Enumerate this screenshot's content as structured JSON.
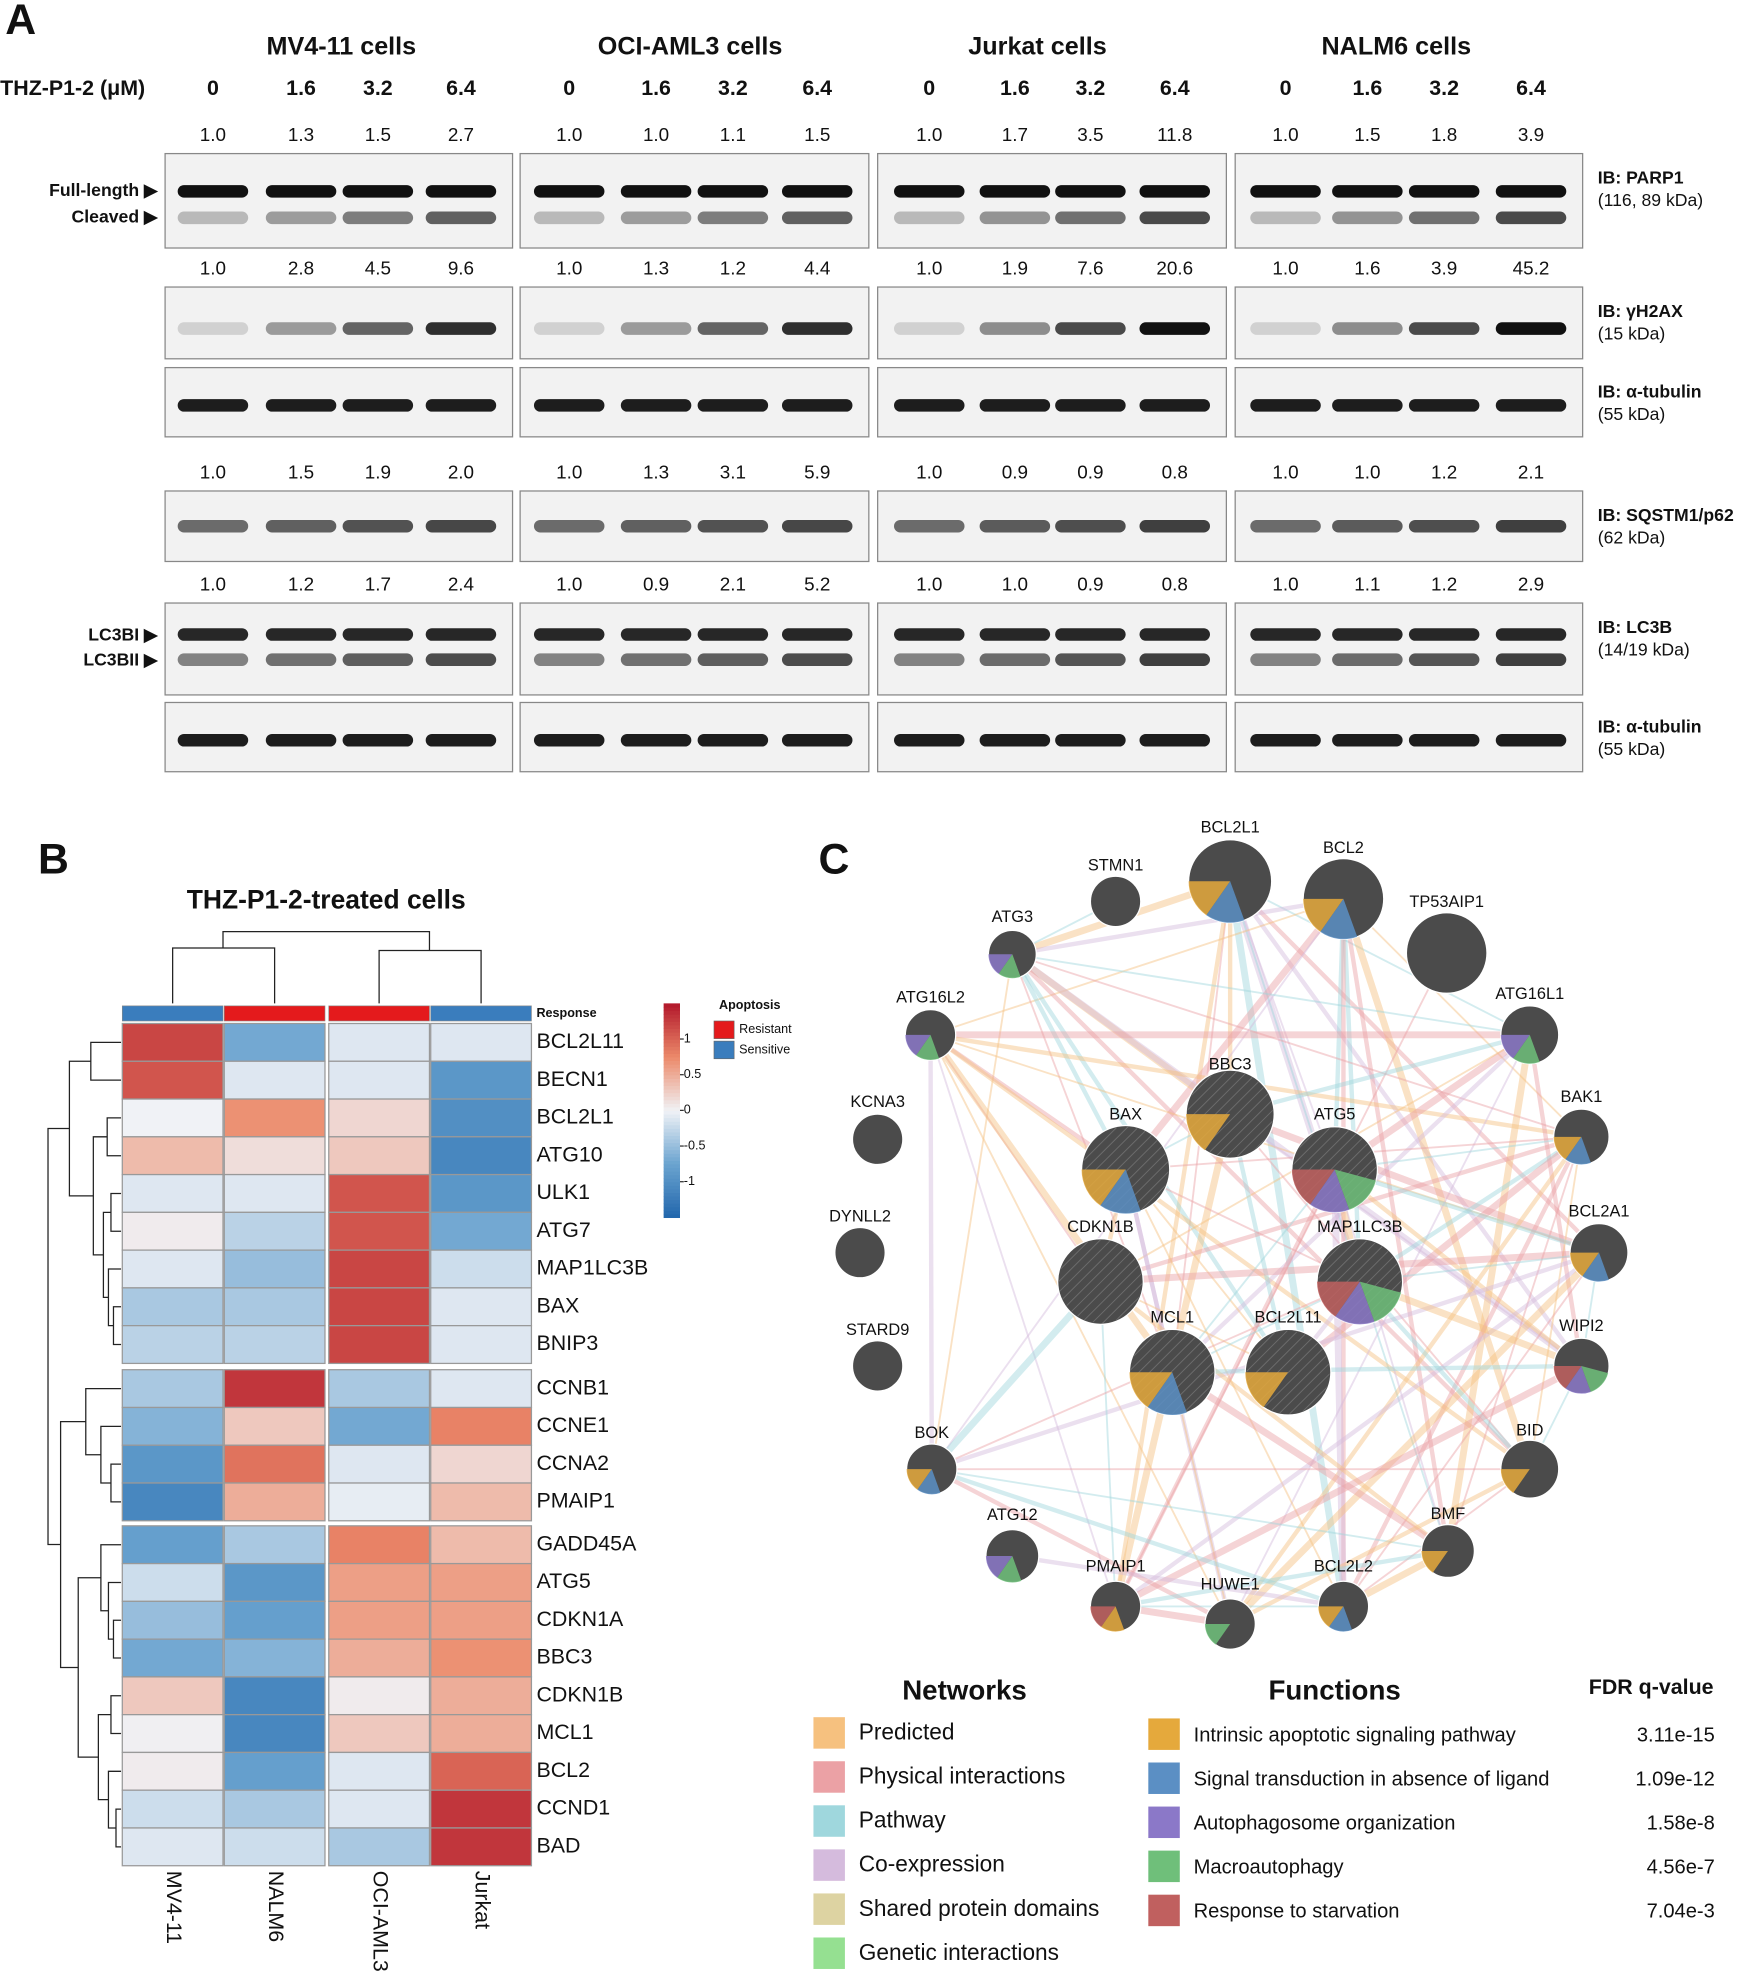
{
  "panel_a": {
    "label": "A",
    "treatment_label": "THZ-P1-2 (μM)",
    "cell_lines": [
      "MV4-11 cells",
      "OCI-AML3 cells",
      "Jurkat cells",
      "NALM6 cells"
    ],
    "doses": [
      "0",
      "1.6",
      "3.2",
      "6.4"
    ],
    "blots": [
      {
        "quantification": [
          [
            "1.0",
            "1.3",
            "1.5",
            "2.7"
          ],
          [
            "1.0",
            "1.0",
            "1.1",
            "1.5"
          ],
          [
            "1.0",
            "1.7",
            "3.5",
            "11.8"
          ],
          [
            "1.0",
            "1.5",
            "1.8",
            "3.9"
          ]
        ],
        "antibody": "IB: PARP1",
        "size": "(116, 89 kDa)",
        "markers": [
          "Full-length ▶",
          "Cleaved ▶"
        ]
      },
      {
        "quantification": [
          [
            "1.0",
            "2.8",
            "4.5",
            "9.6"
          ],
          [
            "1.0",
            "1.3",
            "1.2",
            "4.4"
          ],
          [
            "1.0",
            "1.9",
            "7.6",
            "20.6"
          ],
          [
            "1.0",
            "1.6",
            "3.9",
            "45.2"
          ]
        ],
        "antibody": "IB: γH2AX",
        "size": "(15 kDa)"
      },
      {
        "antibody": "IB: α-tubulin",
        "size": "(55 kDa)"
      },
      {
        "quantification": [
          [
            "1.0",
            "1.5",
            "1.9",
            "2.0"
          ],
          [
            "1.0",
            "1.3",
            "3.1",
            "5.9"
          ],
          [
            "1.0",
            "0.9",
            "0.9",
            "0.8"
          ],
          [
            "1.0",
            "1.0",
            "1.2",
            "2.1"
          ]
        ],
        "antibody": "IB: SQSTM1/p62",
        "size": "(62 kDa)"
      },
      {
        "quantification": [
          [
            "1.0",
            "1.2",
            "1.7",
            "2.4"
          ],
          [
            "1.0",
            "0.9",
            "2.1",
            "5.2"
          ],
          [
            "1.0",
            "1.0",
            "0.9",
            "0.8"
          ],
          [
            "1.0",
            "1.1",
            "1.2",
            "2.9"
          ]
        ],
        "antibody": "IB: LC3B",
        "size": "(14/19 kDa)",
        "markers": [
          "LC3BI ▶",
          "LC3BII ▶"
        ]
      },
      {
        "antibody": "IB: α-tubulin",
        "size": "(55 kDa)"
      }
    ]
  },
  "panel_b": {
    "label": "B",
    "title": "THZ-P1-2-treated cells",
    "response_label": "Response",
    "legend_title": "Apoptosis",
    "legend": [
      {
        "name": "Resistant",
        "color": "#e41a1c"
      },
      {
        "name": "Sensitive",
        "color": "#3a7dbd"
      }
    ],
    "columns": [
      {
        "name": "MV4-11",
        "response": 1
      },
      {
        "name": "NALM6",
        "response": 0
      },
      {
        "name": "OCI-AML3",
        "response": 0
      },
      {
        "name": "Jurkat",
        "response": 1
      }
    ],
    "genes": [
      "BCL2L11",
      "BECN1",
      "BCL2L1",
      "ATG10",
      "ULK1",
      "ATG7",
      "MAP1LC3B",
      "BAX",
      "BNIP3",
      "CCNB1",
      "CCNE1",
      "CCNA2",
      "PMAIP1",
      "GADD45A",
      "ATG5",
      "CDKN1A",
      "BBC3",
      "CDKN1B",
      "MCL1",
      "BCL2",
      "CCND1",
      "BAD"
    ],
    "values": [
      [
        1.2,
        -0.7,
        -0.1,
        -0.1
      ],
      [
        1.1,
        -0.1,
        -0.1,
        -0.9
      ],
      [
        0,
        0.7,
        0.2,
        -1.0
      ],
      [
        0.4,
        0.15,
        0.3,
        -1.1
      ],
      [
        -0.1,
        -0.1,
        1.1,
        -0.9
      ],
      [
        0.05,
        -0.3,
        1.1,
        -0.7
      ],
      [
        -0.1,
        -0.5,
        1.2,
        -0.2
      ],
      [
        -0.4,
        -0.4,
        1.2,
        -0.1
      ],
      [
        -0.3,
        -0.3,
        1.2,
        -0.1
      ],
      [
        -0.4,
        1.3,
        -0.4,
        -0.1
      ],
      [
        -0.6,
        0.3,
        -0.7,
        0.8
      ],
      [
        -0.9,
        0.9,
        -0.1,
        0.2
      ],
      [
        -1.1,
        0.5,
        -0.05,
        0.4
      ],
      [
        -0.8,
        -0.4,
        0.8,
        0.4
      ],
      [
        -0.2,
        -0.9,
        0.6,
        0.6
      ],
      [
        -0.5,
        -0.8,
        0.6,
        0.6
      ],
      [
        -0.7,
        -0.6,
        0.5,
        0.7
      ],
      [
        0.3,
        -1.1,
        0.05,
        0.5
      ],
      [
        0.02,
        -1.1,
        0.3,
        0.5
      ],
      [
        0.05,
        -0.8,
        -0.1,
        1.0
      ],
      [
        -0.2,
        -0.4,
        -0.1,
        1.3
      ],
      [
        -0.1,
        -0.2,
        -0.4,
        1.3
      ]
    ],
    "clim": [
      -1.5,
      1.5
    ],
    "cticks": [
      1,
      0.5,
      0,
      -0.5,
      -1
    ]
  },
  "panel_c": {
    "label": "C",
    "nodes": [
      {
        "label": "BCL2L1",
        "functions": [
          0,
          1
        ]
      },
      {
        "label": "BCL2",
        "functions": [
          0,
          1
        ]
      },
      {
        "label": "STMN1",
        "functions": []
      },
      {
        "label": "TP53AIP1",
        "functions": []
      },
      {
        "label": "ATG3",
        "functions": [
          2,
          3
        ]
      },
      {
        "label": "ATG16L2",
        "functions": [
          2,
          3
        ]
      },
      {
        "label": "ATG16L1",
        "functions": [
          2,
          3
        ]
      },
      {
        "label": "KCNA3",
        "functions": []
      },
      {
        "label": "BBC3",
        "functions": [
          0
        ]
      },
      {
        "label": "BAK1",
        "functions": [
          0,
          1
        ]
      },
      {
        "label": "BAX",
        "functions": [
          0,
          1
        ]
      },
      {
        "label": "ATG5",
        "functions": [
          4,
          2,
          3
        ]
      },
      {
        "label": "DYNLL2",
        "functions": []
      },
      {
        "label": "BCL2A1",
        "functions": [
          0,
          1
        ]
      },
      {
        "label": "CDKN1B",
        "functions": []
      },
      {
        "label": "MAP1LC3B",
        "functions": [
          4,
          2,
          3
        ]
      },
      {
        "label": "STARD9",
        "functions": []
      },
      {
        "label": "MCL1",
        "functions": [
          0,
          1
        ]
      },
      {
        "label": "BCL2L11",
        "functions": [
          0
        ]
      },
      {
        "label": "WIPI2",
        "functions": [
          4,
          2,
          3
        ]
      },
      {
        "label": "BOK",
        "functions": [
          0,
          1
        ]
      },
      {
        "label": "BID",
        "functions": [
          0
        ]
      },
      {
        "label": "BMF",
        "functions": [
          0
        ]
      },
      {
        "label": "ATG12",
        "functions": [
          2,
          3
        ]
      },
      {
        "label": "PMAIP1",
        "functions": [
          4,
          0
        ]
      },
      {
        "label": "HUWE1",
        "functions": [
          3
        ]
      },
      {
        "label": "BCL2L2",
        "functions": [
          0,
          1
        ]
      }
    ],
    "networks_title": "Networks",
    "networks": [
      {
        "name": "Predicted",
        "color": "#f6c17f"
      },
      {
        "name": "Physical interactions",
        "color": "#eba1a5"
      },
      {
        "name": "Pathway",
        "color": "#9fd7dd"
      },
      {
        "name": "Co-expression",
        "color": "#d5bbdd"
      },
      {
        "name": "Shared protein domains",
        "color": "#ddd3a2"
      },
      {
        "name": "Genetic interactions",
        "color": "#95e091"
      }
    ],
    "functions_title": "Functions",
    "fdr_title": "FDR q-value",
    "functions": [
      {
        "name": "Intrinsic apoptotic signaling pathway",
        "color": "#e5a93c",
        "fdr": "3.11e-15"
      },
      {
        "name": "Signal transduction in absence of ligand",
        "color": "#5b8fc4",
        "fdr": "1.09e-12"
      },
      {
        "name": "Autophagosome organization",
        "color": "#8b78c8",
        "fdr": "1.58e-8"
      },
      {
        "name": "Macroautophagy",
        "color": "#6fbf7a",
        "fdr": "4.56e-7"
      },
      {
        "name": "Response to starvation",
        "color": "#c0605f",
        "fdr": "7.04e-3"
      }
    ]
  }
}
